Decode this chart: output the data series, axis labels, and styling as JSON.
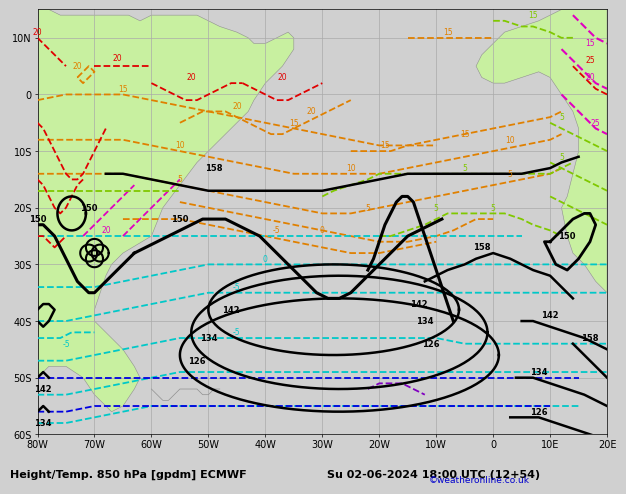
{
  "title_bottom": "Height/Temp. 850 hPa [gpdm] ECMWF",
  "datetime_str": "Su 02-06-2024 18:00 UTC (12+54)",
  "credit": "©weatheronline.co.uk",
  "background_land": "#c8f0a0",
  "background_ocean": "#d0d0d0",
  "grid_color": "#aaaaaa",
  "lon_min": -80,
  "lon_max": 20,
  "lat_min": -60,
  "lat_max": 15,
  "font_size_label": 7,
  "font_size_title": 8,
  "colors": {
    "black": "#000000",
    "orange": "#e08000",
    "cyan": "#00c8c8",
    "blue": "#0000e0",
    "red": "#e00000",
    "magenta": "#e000c0",
    "green_yellow": "#80c800",
    "purple": "#8000c0",
    "gray": "#909090"
  }
}
